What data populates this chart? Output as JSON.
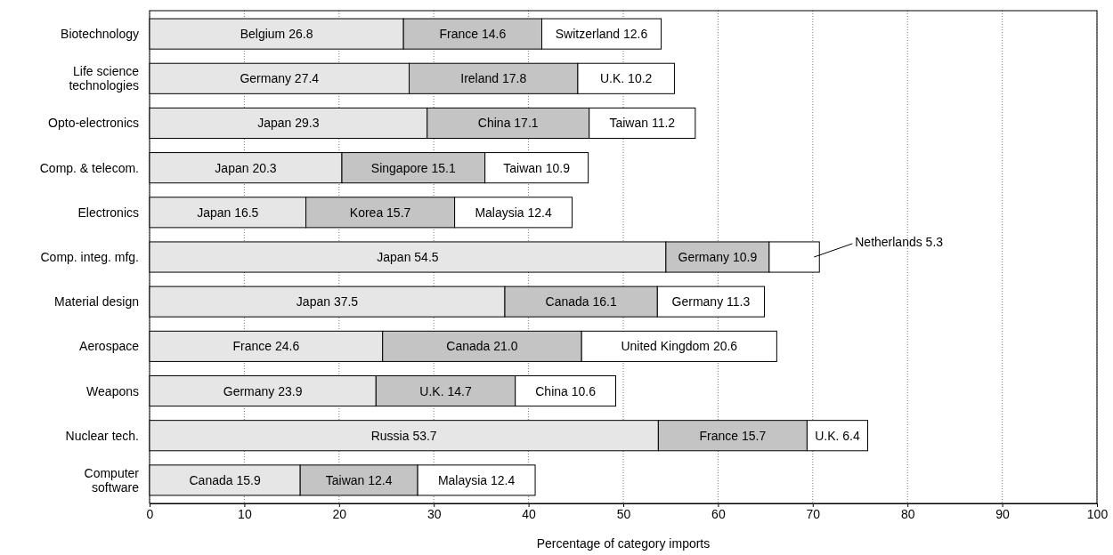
{
  "chart_data": {
    "type": "bar",
    "orientation": "horizontal",
    "stacked": true,
    "categories": [
      "Biotechnology",
      "Life science\ntechnologies",
      "Opto-electronics",
      "Comp. & telecom.",
      "Electronics",
      "Comp. integ. mfg.",
      "Material design",
      "Aerospace",
      "Weapons",
      "Nuclear tech.",
      "Computer\nsoftware"
    ],
    "series": [
      {
        "color": "#e6e6e6",
        "values": [
          26.8,
          27.4,
          29.3,
          20.3,
          16.5,
          54.5,
          37.5,
          24.6,
          23.9,
          53.7,
          15.9
        ],
        "value_labels": [
          "Belgium 26.8",
          "Germany 27.4",
          "Japan 29.3",
          "Japan 20.3",
          "Japan 16.5",
          "Japan 54.5",
          "Japan 37.5",
          "France 24.6",
          "Germany 23.9",
          "Russia 53.7",
          "Canada 15.9"
        ]
      },
      {
        "color": "#c4c4c4",
        "values": [
          14.6,
          17.8,
          17.1,
          15.1,
          15.7,
          10.9,
          16.1,
          21.0,
          14.7,
          15.7,
          12.4
        ],
        "value_labels": [
          "France 14.6",
          "Ireland 17.8",
          "China 17.1",
          "Singapore 15.1",
          "Korea 15.7",
          "Germany 10.9",
          "Canada 16.1",
          "Canada 21.0",
          "U.K. 14.7",
          "France 15.7",
          "Taiwan 12.4"
        ]
      },
      {
        "color": "#ffffff",
        "values": [
          12.6,
          10.2,
          11.2,
          10.9,
          12.4,
          5.3,
          11.3,
          20.6,
          10.6,
          6.4,
          12.4
        ],
        "value_labels": [
          "Switzerland 12.6",
          "U.K. 10.2",
          "Taiwan 11.2",
          "Taiwan 10.9",
          "Malaysia 12.4",
          "Netherlands 5.3",
          "Germany 11.3",
          "United Kingdom 20.6",
          "China 10.6",
          "U.K. 6.4",
          "Malaysia 12.4"
        ]
      }
    ],
    "xlim": [
      0,
      100
    ],
    "xticks": [
      0,
      10,
      20,
      30,
      40,
      50,
      60,
      70,
      80,
      90,
      100
    ],
    "xlabel": "Percentage of category imports",
    "grid": "x"
  }
}
